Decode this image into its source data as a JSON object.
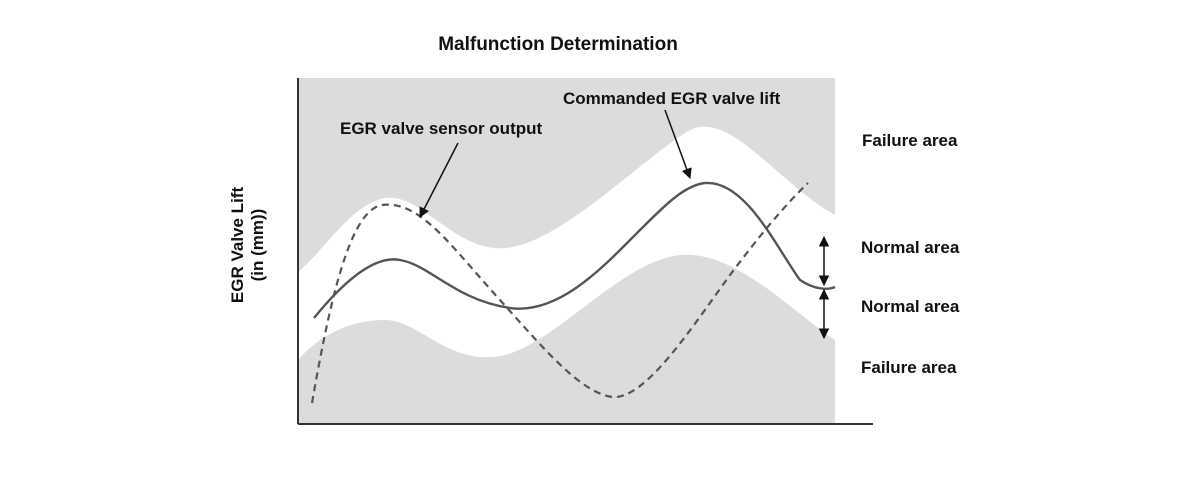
{
  "title": "Malfunction Determination",
  "y_axis_label_line1": "EGR Valve Lift",
  "y_axis_label_line2": "(in (mm))",
  "annotations": {
    "sensor_output": "EGR valve sensor output",
    "commanded_lift": "Commanded EGR valve lift"
  },
  "area_labels": {
    "failure_upper": "Failure area",
    "normal_upper": "Normal area",
    "normal_lower": "Normal area",
    "failure_lower": "Failure area"
  },
  "colors": {
    "failure_area": "#dcdcdc",
    "normal_band": "#ffffff",
    "curves": "#555555",
    "axes": "#333333"
  }
}
